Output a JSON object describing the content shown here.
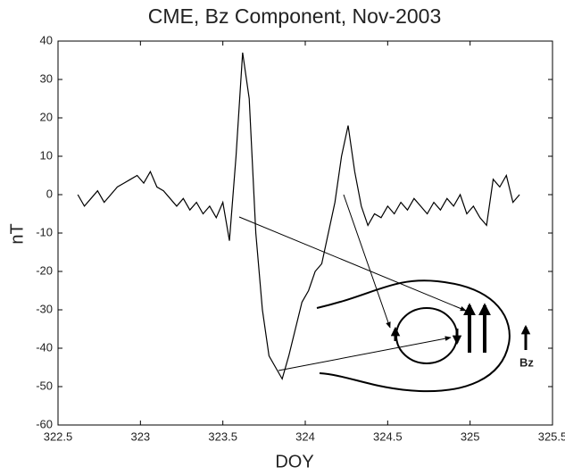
{
  "chart_data": {
    "type": "line",
    "title": "CME, Bz Component, Nov-2003",
    "xlabel": "DOY",
    "ylabel": "nT",
    "annotation": "Bz",
    "x": [
      322.62,
      322.66,
      322.7,
      322.74,
      322.78,
      322.82,
      322.86,
      322.9,
      322.94,
      322.98,
      323.02,
      323.06,
      323.1,
      323.14,
      323.18,
      323.22,
      323.26,
      323.3,
      323.34,
      323.38,
      323.42,
      323.46,
      323.5,
      323.54,
      323.58,
      323.62,
      323.66,
      323.7,
      323.74,
      323.78,
      323.82,
      323.86,
      323.9,
      323.94,
      323.98,
      324.02,
      324.06,
      324.1,
      324.14,
      324.18,
      324.22,
      324.26,
      324.3,
      324.34,
      324.38,
      324.42,
      324.46,
      324.5,
      324.54,
      324.58,
      324.62,
      324.66,
      324.7,
      324.74,
      324.78,
      324.82,
      324.86,
      324.9,
      324.94,
      324.98,
      325.02,
      325.06,
      325.1,
      325.14,
      325.18,
      325.22,
      325.26,
      325.3
    ],
    "series": [
      {
        "color": "#000000",
        "values": [
          0,
          -3,
          -1,
          1,
          -2,
          0,
          2,
          3,
          4,
          5,
          3,
          6,
          2,
          1,
          -1,
          -3,
          -1,
          -4,
          -2,
          -5,
          -3,
          -6,
          -2,
          -12,
          10,
          37,
          25,
          -10,
          -30,
          -42,
          -45,
          -48,
          -42,
          -35,
          -28,
          -25,
          -20,
          -18,
          -10,
          -2,
          10,
          18,
          6,
          -3,
          -8,
          -5,
          -6,
          -3,
          -5,
          -2,
          -4,
          -1,
          -3,
          -5,
          -2,
          -4,
          -1,
          -3,
          0,
          -5,
          -3,
          -6,
          -8,
          4,
          2,
          5,
          -2,
          0
        ]
      }
    ],
    "xlim": [
      322.5,
      325.5
    ],
    "xticks": [
      322.5,
      323,
      323.5,
      324,
      324.5,
      325,
      325.5
    ],
    "ylim": [
      -60,
      40
    ],
    "yticks": [
      -60,
      -50,
      -40,
      -30,
      -20,
      -10,
      0,
      10,
      20,
      30,
      40
    ]
  }
}
